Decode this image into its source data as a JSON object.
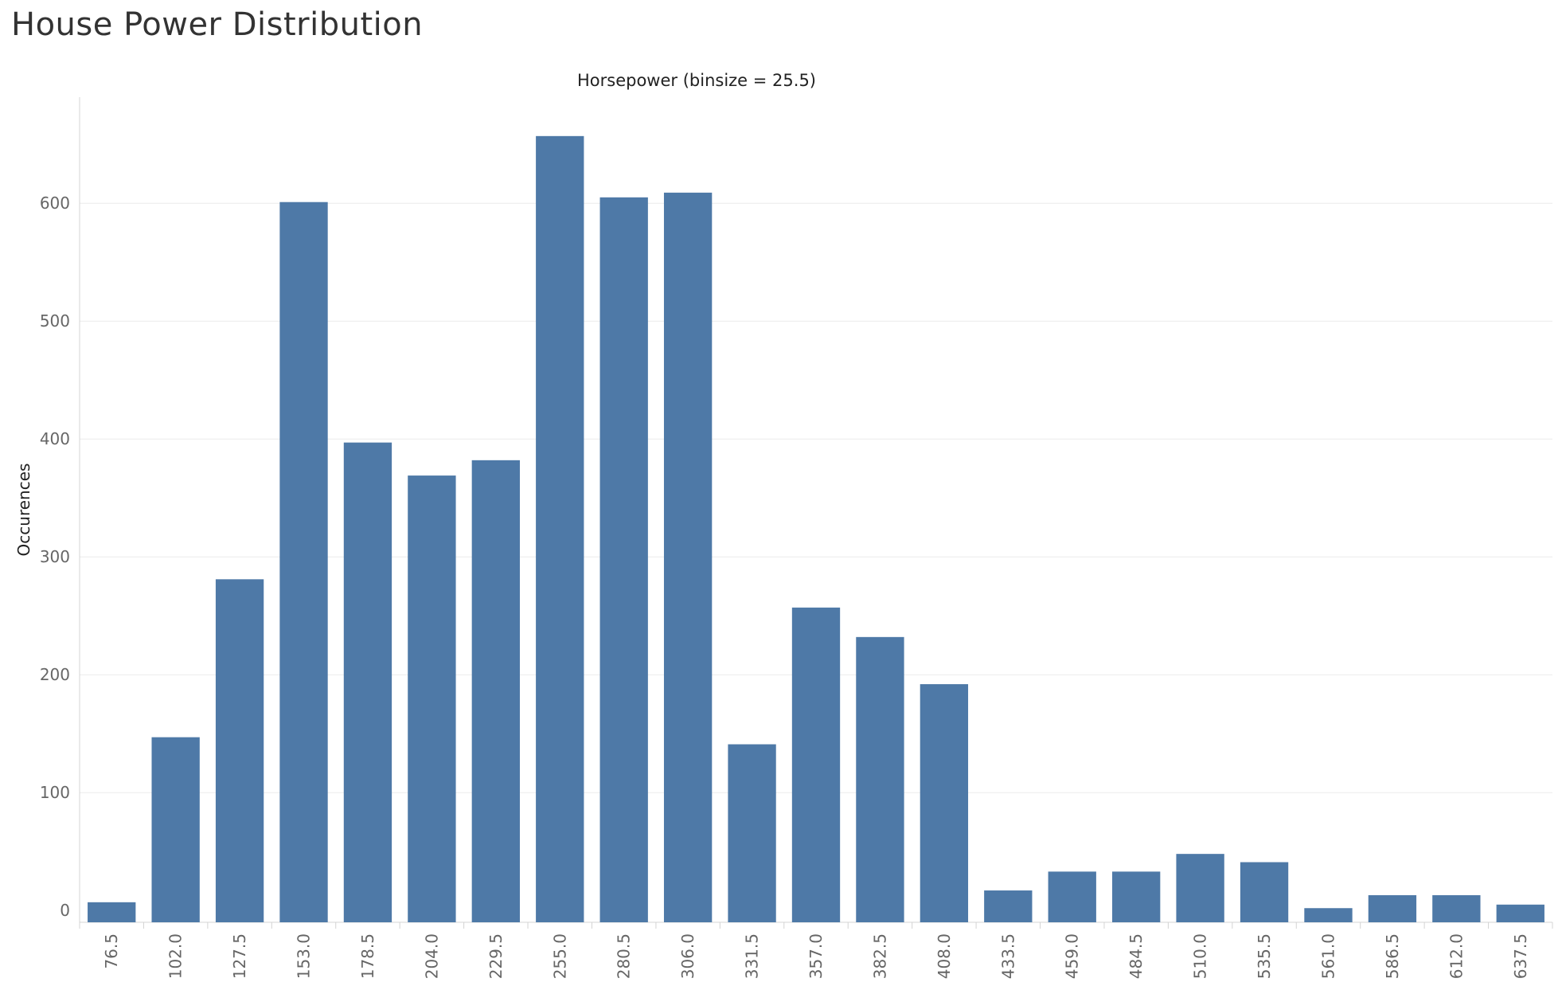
{
  "page": {
    "title": "House Power Distribution"
  },
  "chart_data": {
    "type": "bar",
    "title": "Horsepower (binsize = 25.5)",
    "xlabel": "",
    "ylabel": "Occurences",
    "categories": [
      "76.5",
      "102.0",
      "127.5",
      "153.0",
      "178.5",
      "204.0",
      "229.5",
      "255.0",
      "280.5",
      "306.0",
      "331.5",
      "357.0",
      "382.5",
      "408.0",
      "433.5",
      "459.0",
      "484.5",
      "510.0",
      "535.5",
      "561.0",
      "586.5",
      "612.0",
      "637.5"
    ],
    "values": [
      7,
      147,
      281,
      601,
      397,
      369,
      382,
      657,
      605,
      609,
      141,
      257,
      232,
      192,
      17,
      33,
      33,
      48,
      41,
      2,
      13,
      13,
      5
    ],
    "ylim": [
      -10,
      690
    ],
    "yticks": [
      0,
      100,
      200,
      300,
      400,
      500,
      600
    ],
    "grid": true,
    "legend": "none",
    "colors": {
      "bar": "#4e79a7",
      "grid": "#ebebeb",
      "tick_text": "#666666"
    }
  }
}
